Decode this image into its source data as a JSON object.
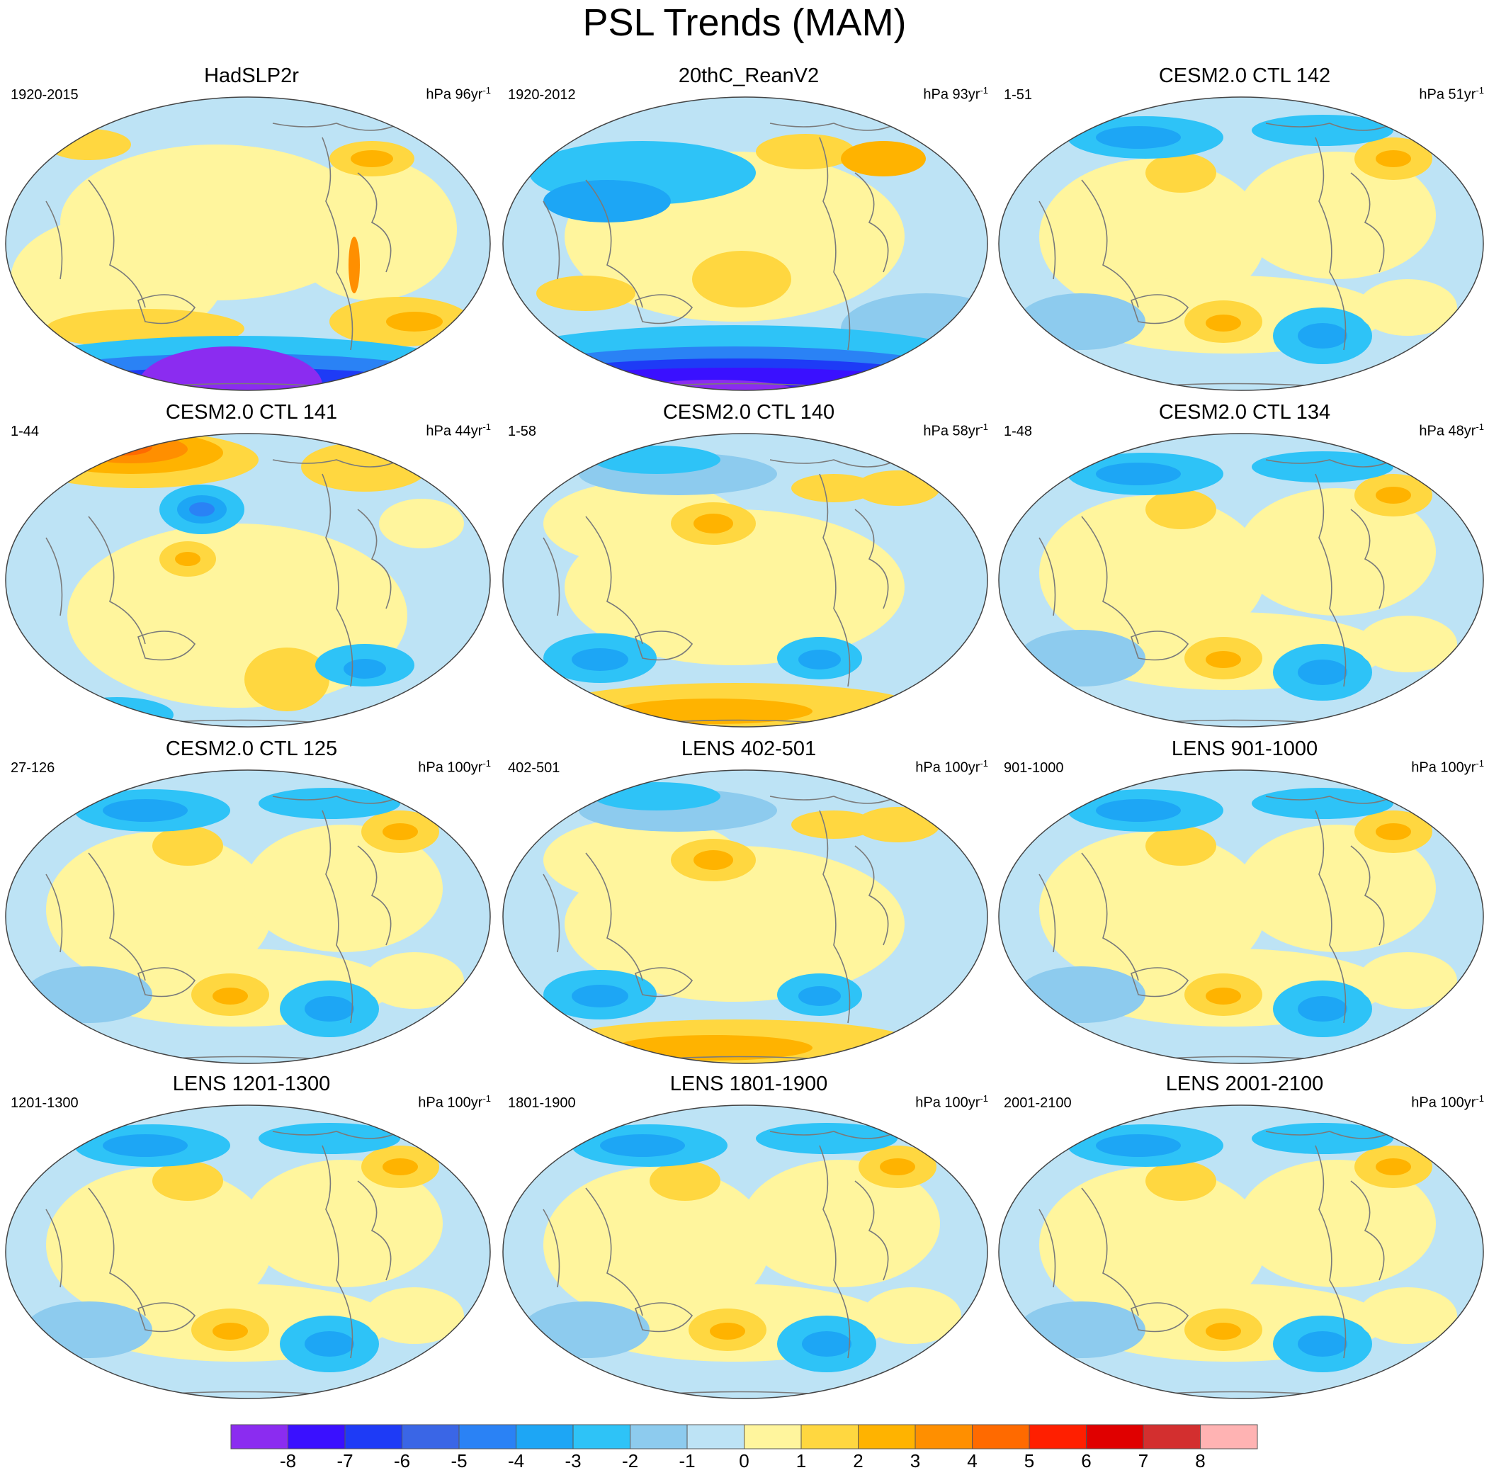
{
  "title": "PSL Trends (MAM)",
  "colorbar": {
    "colors": [
      "#8b2cf0",
      "#3a10ff",
      "#1e3bf6",
      "#3a66e6",
      "#2a82f5",
      "#1da6f5",
      "#2ec3f7",
      "#8dcbee",
      "#bde3f5",
      "#fff59d",
      "#ffd740",
      "#ffb300",
      "#ff8f00",
      "#ff6a00",
      "#ff1f00",
      "#e00000",
      "#d32f2f",
      "#ffb3b3"
    ],
    "labels": [
      "-8",
      "-7",
      "-6",
      "-5",
      "-4",
      "-3",
      "-2",
      "-1",
      "0",
      "1",
      "2",
      "3",
      "4",
      "5",
      "6",
      "7",
      "8"
    ]
  },
  "panels": [
    {
      "title": "HadSLP2r",
      "period": "1920-2015",
      "units": "hPa 96yr",
      "exponent": "-1",
      "pattern": "hadslp"
    },
    {
      "title": "20thC_ReanV2",
      "period": "1920-2012",
      "units": "hPa 93yr",
      "exponent": "-1",
      "pattern": "rean"
    },
    {
      "title": "CESM2.0 CTL 142",
      "period": "1-51",
      "units": "hPa 51yr",
      "exponent": "-1",
      "pattern": "weak"
    },
    {
      "title": "CESM2.0 CTL 141",
      "period": "1-44",
      "units": "hPa 44yr",
      "exponent": "-1",
      "pattern": "arctic-warm"
    },
    {
      "title": "CESM2.0 CTL 140",
      "period": "1-58",
      "units": "hPa 58yr",
      "exponent": "-1",
      "pattern": "south-warm"
    },
    {
      "title": "CESM2.0 CTL 134",
      "period": "1-48",
      "units": "hPa 48yr",
      "exponent": "-1",
      "pattern": "weak"
    },
    {
      "title": "CESM2.0 CTL 125",
      "period": "27-126",
      "units": "hPa 100yr",
      "exponent": "-1",
      "pattern": "weak"
    },
    {
      "title": "LENS 402-501",
      "period": "402-501",
      "units": "hPa 100yr",
      "exponent": "-1",
      "pattern": "south-warm"
    },
    {
      "title": "LENS 901-1000",
      "period": "901-1000",
      "units": "hPa 100yr",
      "exponent": "-1",
      "pattern": "weak"
    },
    {
      "title": "LENS 1201-1300",
      "period": "1201-1300",
      "units": "hPa 100yr",
      "exponent": "-1",
      "pattern": "weak"
    },
    {
      "title": "LENS 1801-1900",
      "period": "1801-1900",
      "units": "hPa 100yr",
      "exponent": "-1",
      "pattern": "weak"
    },
    {
      "title": "LENS 2001-2100",
      "period": "2001-2100",
      "units": "hPa 100yr",
      "exponent": "-1",
      "pattern": "weak"
    }
  ]
}
